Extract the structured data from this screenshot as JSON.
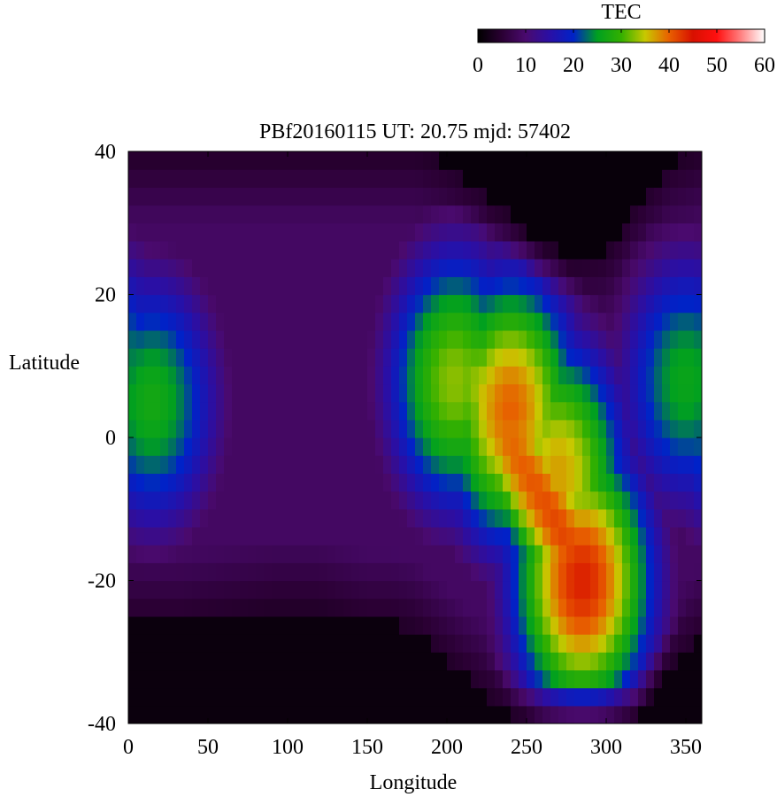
{
  "chart_data": {
    "type": "heatmap",
    "title": "PBf20160115  UT: 20.75  mjd: 57402",
    "xlabel": "Longitude",
    "ylabel": "Latitude",
    "xlim": [
      0,
      360
    ],
    "ylim": [
      -40,
      40
    ],
    "x_ticks": [
      0,
      50,
      100,
      150,
      200,
      250,
      300,
      350
    ],
    "y_ticks": [
      -40,
      -20,
      0,
      20,
      40
    ],
    "colorbar": {
      "label": "TEC",
      "range": [
        0,
        60
      ],
      "ticks": [
        0,
        10,
        20,
        30,
        40,
        50,
        60
      ],
      "stops": [
        {
          "value": 0,
          "color": "#000000"
        },
        {
          "value": 5,
          "color": "#2a0033"
        },
        {
          "value": 10,
          "color": "#4a0a6e"
        },
        {
          "value": 15,
          "color": "#2a0fa5"
        },
        {
          "value": 20,
          "color": "#0022c8"
        },
        {
          "value": 25,
          "color": "#00a020"
        },
        {
          "value": 30,
          "color": "#33b000"
        },
        {
          "value": 35,
          "color": "#c8c800"
        },
        {
          "value": 40,
          "color": "#e86000"
        },
        {
          "value": 45,
          "color": "#d81000"
        },
        {
          "value": 50,
          "color": "#ff1010"
        },
        {
          "value": 55,
          "color": "#ff8080"
        },
        {
          "value": 60,
          "color": "#ffffff"
        }
      ]
    },
    "grid_resolution": {
      "lon_step": 5,
      "lat_step": 2.5
    },
    "field_features": [
      {
        "lon": 285,
        "lat": -20,
        "tec": 44
      },
      {
        "lon": 240,
        "lat": 4,
        "tec": 40
      },
      {
        "lon": 270,
        "lat": -5,
        "tec": 37
      },
      {
        "lon": 205,
        "lat": 8,
        "tec": 33
      },
      {
        "lon": 15,
        "lat": 5,
        "tec": 27
      },
      {
        "lon": 350,
        "lat": 8,
        "tec": 26
      }
    ],
    "north_boundary": {
      "lon": [
        0,
        30,
        60,
        90,
        120,
        150,
        165,
        180,
        200,
        220,
        240,
        260,
        280,
        300,
        320,
        340,
        360
      ],
      "lat": [
        40,
        40,
        40,
        40,
        40,
        40,
        40,
        40,
        38,
        35,
        31,
        27,
        25,
        26,
        33,
        38,
        40
      ]
    },
    "south_boundary": {
      "lon": [
        0,
        30,
        60,
        90,
        120,
        150,
        165,
        180,
        200,
        220,
        240,
        260,
        280,
        300,
        320,
        340,
        360
      ],
      "lat": [
        -26,
        -26,
        -25,
        -24,
        -24,
        -26,
        -26,
        -27,
        -31,
        -35,
        -39,
        -40,
        -40,
        -40,
        -39,
        -32,
        -28
      ]
    }
  }
}
